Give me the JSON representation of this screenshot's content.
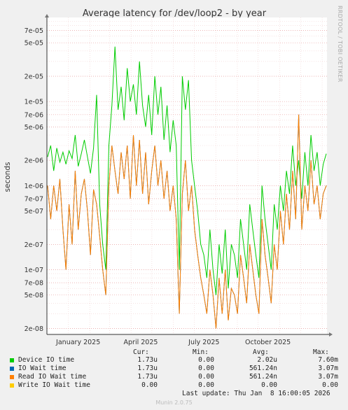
{
  "chart_data": {
    "type": "line",
    "title": "Average latency for /dev/loop2 - by year",
    "ylabel": "seconds",
    "yscale": "log",
    "ylim": [
      1.7e-08,
      0.0001
    ],
    "y_ticks": [
      {
        "v": 7e-05,
        "label": "7e-05"
      },
      {
        "v": 5e-05,
        "label": "5e-05"
      },
      {
        "v": 2e-05,
        "label": "2e-05"
      },
      {
        "v": 1e-05,
        "label": "1e-05"
      },
      {
        "v": 7e-06,
        "label": "7e-06"
      },
      {
        "v": 5e-06,
        "label": "5e-06"
      },
      {
        "v": 2e-06,
        "label": "2e-06"
      },
      {
        "v": 1e-06,
        "label": "1e-06"
      },
      {
        "v": 7e-07,
        "label": "7e-07"
      },
      {
        "v": 5e-07,
        "label": "5e-07"
      },
      {
        "v": 2e-07,
        "label": "2e-07"
      },
      {
        "v": 1e-07,
        "label": "1e-07"
      },
      {
        "v": 7e-08,
        "label": "7e-08"
      },
      {
        "v": 5e-08,
        "label": "5e-08"
      },
      {
        "v": 2e-08,
        "label": "2e-08"
      }
    ],
    "x_range": [
      "2024-12-01",
      "2026-01-08"
    ],
    "x_ticks": [
      {
        "date": "2025-01-15",
        "label": "January 2025"
      },
      {
        "date": "2025-04-15",
        "label": "April 2025"
      },
      {
        "date": "2025-07-15",
        "label": "July 2025"
      },
      {
        "date": "2025-10-15",
        "label": "October 2025"
      }
    ],
    "grid": true,
    "series": [
      {
        "name": "Device IO time",
        "color": "#00cc00",
        "values": [
          2.2e-06,
          3e-06,
          1.5e-06,
          2.8e-06,
          1.9e-06,
          2.5e-06,
          1.8e-06,
          2.6e-06,
          2.1e-06,
          4e-06,
          1.7e-06,
          2.4e-06,
          3.5e-06,
          2.2e-06,
          1.4e-06,
          2.8e-06,
          1.2e-05,
          6e-07,
          2e-07,
          1e-07,
          3e-06,
          9e-06,
          4.5e-05,
          8e-06,
          1.5e-05,
          6e-06,
          2.5e-05,
          1e-05,
          1.6e-05,
          7e-06,
          3e-05,
          9e-06,
          5e-06,
          1.2e-05,
          4e-06,
          2e-05,
          7e-06,
          1.5e-05,
          3.5e-06,
          9e-06,
          2.5e-06,
          6e-06,
          3e-06,
          1e-07,
          2e-05,
          8e-06,
          1.8e-05,
          2e-06,
          1e-06,
          5e-07,
          2e-07,
          1.5e-07,
          8e-08,
          3e-07,
          1e-07,
          5e-08,
          2e-07,
          9e-08,
          3e-07,
          6e-08,
          2e-07,
          1.5e-07,
          8e-08,
          4e-07,
          2e-07,
          1e-07,
          6e-07,
          3e-07,
          1.5e-07,
          8e-08,
          1e-06,
          4e-07,
          2e-07,
          1e-07,
          6e-07,
          3e-07,
          1e-06,
          5e-07,
          1.5e-06,
          8e-07,
          3e-06,
          1e-06,
          2e-06,
          7e-07,
          2.5e-06,
          1e-06,
          4e-06,
          1.5e-06,
          2.5e-06,
          1e-06,
          1.8e-06,
          2.4e-06
        ]
      },
      {
        "name": "IO Wait time",
        "color": "#0066b3",
        "values": [
          1e-06,
          4e-07,
          1e-06,
          5e-07,
          1.2e-06,
          3e-07,
          1e-07,
          6e-07,
          2e-07,
          1.5e-06,
          3e-07,
          8e-07,
          1.2e-06,
          5e-07,
          1.5e-07,
          9e-07,
          6e-07,
          2.5e-07,
          1e-07,
          5e-08,
          1e-06,
          3e-06,
          1.5e-06,
          8e-07,
          2.5e-06,
          1.2e-06,
          3e-06,
          7e-07,
          4e-06,
          1e-06,
          3.5e-06,
          8e-07,
          2.5e-06,
          6e-07,
          1.5e-06,
          3e-06,
          1e-06,
          2e-06,
          7e-07,
          1.5e-06,
          5e-07,
          1e-06,
          4e-07,
          3e-08,
          8e-07,
          2e-06,
          5e-07,
          1e-06,
          3e-07,
          1.5e-07,
          8e-08,
          5e-08,
          3e-08,
          1e-07,
          5e-08,
          2e-08,
          8e-08,
          3e-08,
          1e-07,
          2.5e-08,
          6e-08,
          5e-08,
          3e-08,
          1.5e-07,
          8e-08,
          4e-08,
          2e-07,
          1e-07,
          5e-08,
          3e-08,
          4e-07,
          1.5e-07,
          8e-08,
          4e-08,
          2e-07,
          1e-07,
          5e-07,
          2e-07,
          8e-07,
          3e-07,
          1.5e-06,
          4e-07,
          7e-06,
          3e-07,
          1e-06,
          5e-07,
          2e-06,
          6e-07,
          1e-06,
          4e-07,
          8e-07,
          1e-06
        ]
      },
      {
        "name": "Read IO Wait time",
        "color": "#ff8000",
        "values": [
          1e-06,
          4e-07,
          1e-06,
          5e-07,
          1.2e-06,
          3e-07,
          1e-07,
          6e-07,
          2e-07,
          1.5e-06,
          3e-07,
          8e-07,
          1.2e-06,
          5e-07,
          1.5e-07,
          9e-07,
          6e-07,
          2.5e-07,
          1e-07,
          5e-08,
          1e-06,
          3e-06,
          1.5e-06,
          8e-07,
          2.5e-06,
          1.2e-06,
          3e-06,
          7e-07,
          4e-06,
          1e-06,
          3.5e-06,
          8e-07,
          2.5e-06,
          6e-07,
          1.5e-06,
          3e-06,
          1e-06,
          2e-06,
          7e-07,
          1.5e-06,
          5e-07,
          1e-06,
          4e-07,
          3e-08,
          8e-07,
          2e-06,
          5e-07,
          1e-06,
          3e-07,
          1.5e-07,
          8e-08,
          5e-08,
          3e-08,
          1e-07,
          5e-08,
          2e-08,
          8e-08,
          3e-08,
          1e-07,
          2.5e-08,
          6e-08,
          5e-08,
          3e-08,
          1.5e-07,
          8e-08,
          4e-08,
          2e-07,
          1e-07,
          5e-08,
          3e-08,
          4e-07,
          1.5e-07,
          8e-08,
          4e-08,
          2e-07,
          1e-07,
          5e-07,
          2e-07,
          8e-07,
          3e-07,
          1.5e-06,
          4e-07,
          7e-06,
          3e-07,
          1e-06,
          5e-07,
          2e-06,
          6e-07,
          1e-06,
          4e-07,
          8e-07,
          1e-06
        ]
      },
      {
        "name": "Write IO Wait time",
        "color": "#ffcc00",
        "values": []
      }
    ]
  },
  "legend": {
    "headers": {
      "cur": "Cur:",
      "min": "Min:",
      "avg": "Avg:",
      "max": "Max:"
    },
    "rows": [
      {
        "name": "Device IO time",
        "color": "#00cc00",
        "cur": "1.73u",
        "min": "0.00",
        "avg": "2.02u",
        "max": "7.60m"
      },
      {
        "name": "IO Wait time",
        "color": "#0066b3",
        "cur": "1.73u",
        "min": "0.00",
        "avg": "561.24n",
        "max": "3.07m"
      },
      {
        "name": "Read IO Wait time",
        "color": "#ff8000",
        "cur": "1.73u",
        "min": "0.00",
        "avg": "561.24n",
        "max": "3.07m"
      },
      {
        "name": "Write IO Wait time",
        "color": "#ffcc00",
        "cur": "0.00",
        "min": "0.00",
        "avg": "0.00",
        "max": "0.00"
      }
    ]
  },
  "last_update": "Last update: Thu Jan  8 16:00:05 2026",
  "side_label": "RRDTOOL / TOBI OETIKER",
  "footer": "Munin 2.0.75"
}
